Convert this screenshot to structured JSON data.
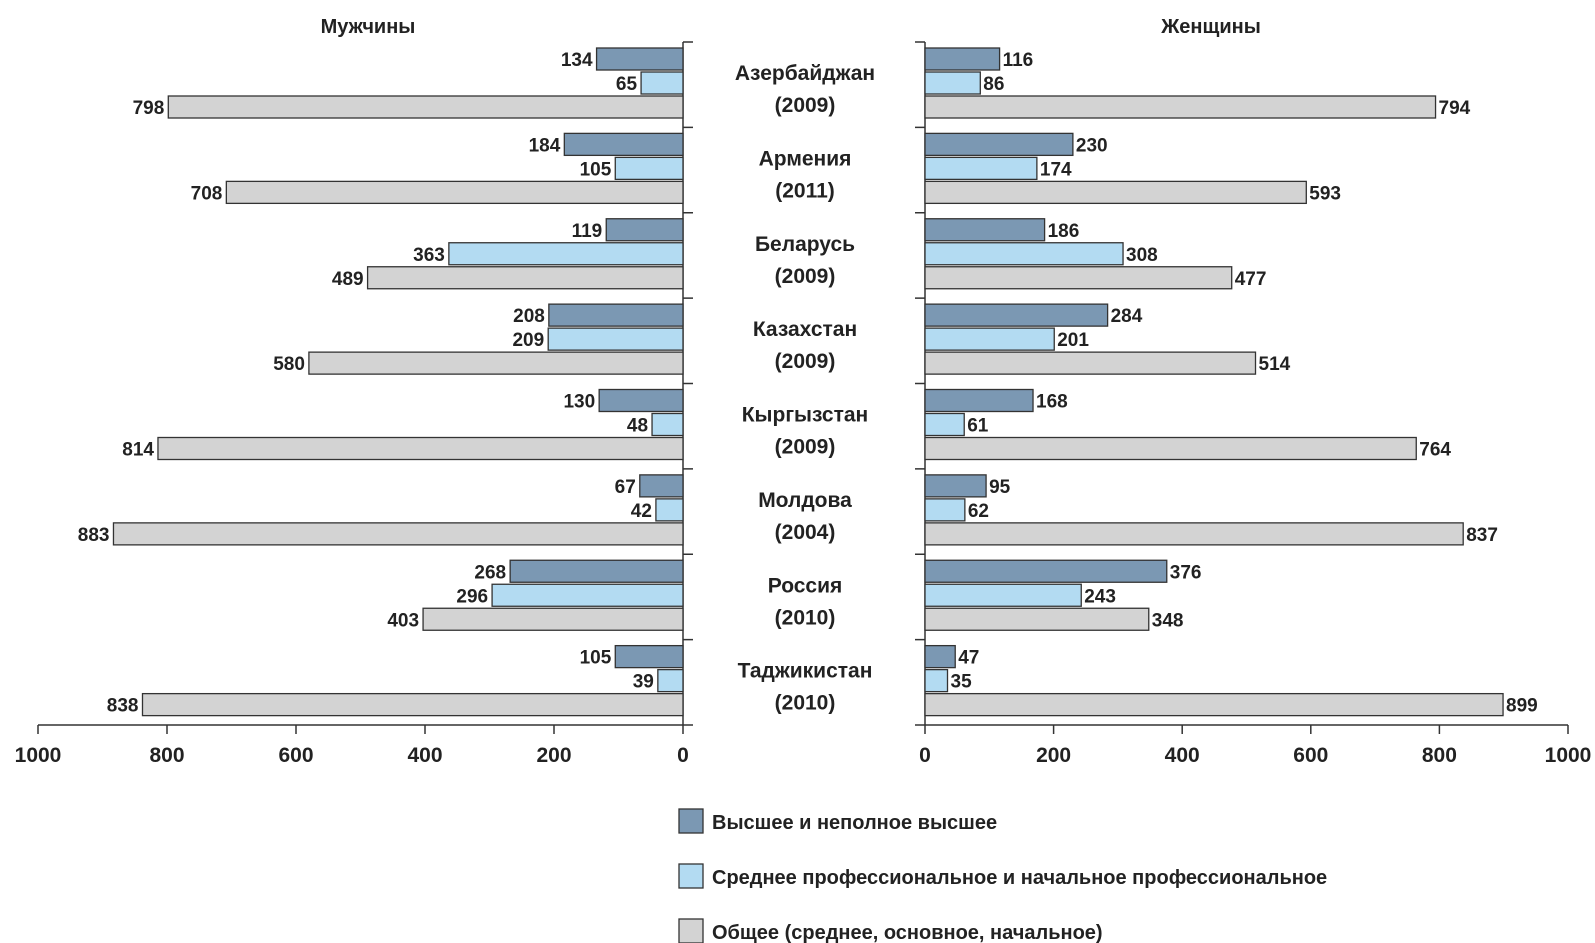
{
  "chart_data": {
    "type": "bar",
    "orientation": "horizontal",
    "layout": "butterfly",
    "panels": [
      {
        "name": "Мужчины",
        "side": "left",
        "xlim": [
          0,
          1000
        ],
        "ticks": [
          "1000",
          "800",
          "600",
          "400",
          "200",
          "0"
        ]
      },
      {
        "name": "Женщины",
        "side": "right",
        "xlim": [
          0,
          1000
        ],
        "ticks": [
          "0",
          "200",
          "400",
          "600",
          "800",
          "1000"
        ]
      }
    ],
    "categories": [
      {
        "name": "Азербайджан",
        "year": "(2009)"
      },
      {
        "name": "Армения",
        "year": "(2011)"
      },
      {
        "name": "Беларусь",
        "year": "(2009)"
      },
      {
        "name": "Казахстан",
        "year": "(2009)"
      },
      {
        "name": "Кыргызстан",
        "year": "(2009)"
      },
      {
        "name": "Молдова",
        "year": "(2004)"
      },
      {
        "name": "Россия",
        "year": "(2010)"
      },
      {
        "name": "Таджикистан",
        "year": "(2010)"
      }
    ],
    "series": [
      {
        "name": "Высшее и неполное высшее",
        "color": "#7b98b3",
        "men": [
          134,
          184,
          119,
          208,
          130,
          67,
          268,
          105
        ],
        "women": [
          116,
          230,
          186,
          284,
          168,
          95,
          376,
          47
        ]
      },
      {
        "name": "Среднее профессиональное и начальное профессиональное",
        "color": "#b3dbf2",
        "men": [
          65,
          105,
          363,
          209,
          48,
          42,
          296,
          39
        ],
        "women": [
          86,
          174,
          308,
          201,
          61,
          62,
          243,
          35
        ]
      },
      {
        "name": "Общее (среднее, основное, начальное)",
        "color": "#d3d3d3",
        "men": [
          798,
          708,
          489,
          580,
          814,
          883,
          403,
          838
        ],
        "women": [
          794,
          593,
          477,
          514,
          764,
          837,
          348,
          899
        ]
      }
    ],
    "legend_position": "bottom-right",
    "grid": false
  }
}
